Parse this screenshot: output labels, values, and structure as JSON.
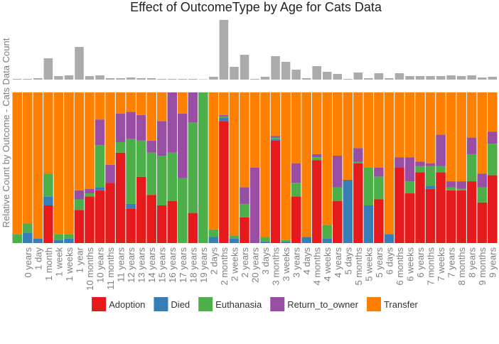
{
  "chart_data": [
    {
      "type": "bar",
      "color": "#ababab",
      "ylim": [
        0,
        86
      ],
      "values": [
        1,
        1,
        2,
        30,
        5,
        6,
        46,
        5,
        6,
        2,
        2,
        3,
        2,
        2,
        1,
        1,
        1,
        1,
        0.5,
        4,
        84,
        18,
        35,
        1,
        4,
        33,
        25,
        14,
        2,
        19,
        11,
        8,
        1,
        10,
        2,
        9,
        2,
        9,
        5,
        5,
        5,
        5,
        6,
        5,
        6,
        3,
        4
      ]
    },
    {
      "type": "stacked_bar",
      "title": "Effect of OutcomeType by Age for Cats Data",
      "y_label": "Relative Count by Outcome - Cats Data Count",
      "ylim": [
        0,
        1
      ],
      "legend": "bottom",
      "categories": [
        null,
        "0 years",
        "1 day",
        "1 month",
        "1 week",
        "1 weeks",
        "1 year",
        "10 months",
        "10 years",
        "11 months",
        "11 years",
        "12 years",
        "13 years",
        "14 years",
        "15 years",
        "16 years",
        "17 years",
        "18 years",
        "19 years",
        "2 days",
        "2 months",
        "2 weeks",
        "2 years",
        "20 years",
        "3 days",
        "3 months",
        "3 weeks",
        "3 years",
        "4 days",
        "4 months",
        "4 weeks",
        "4 years",
        "5 days",
        "5 months",
        "5 weeks",
        "5 years",
        "6 days",
        "6 months",
        "6 weeks",
        "6 years",
        "7 months",
        "7 weeks",
        "7 years",
        "8 months",
        "8 years",
        "9 months",
        "9 years"
      ],
      "series": [
        {
          "name": "Adoption",
          "color": "#e41a1c",
          "values": [
            0,
            0,
            0,
            0.25,
            0,
            0,
            0.22,
            0.31,
            0.35,
            0.4,
            0.6,
            0.23,
            0.44,
            0.32,
            0.25,
            0.28,
            0,
            0.2,
            0,
            0,
            0.81,
            0,
            0.17,
            0,
            0,
            0.68,
            0,
            0.31,
            0,
            0.55,
            0,
            0.28,
            0,
            0.53,
            0,
            0.29,
            0,
            0.5,
            0.33,
            0.47,
            0.36,
            0.47,
            0.35,
            0.35,
            0.41,
            0.27,
            0.45
          ]
        },
        {
          "name": "Died",
          "color": "#377eb8",
          "values": [
            0,
            0.07,
            0.03,
            0.06,
            0.02,
            0.03,
            0,
            0,
            0.02,
            0,
            0,
            0.03,
            0,
            0,
            0,
            0,
            0,
            0,
            0,
            0.04,
            0.02,
            0.03,
            0,
            0,
            0.01,
            0.01,
            0.01,
            0,
            0.04,
            0,
            0.03,
            0,
            0.42,
            0,
            0.25,
            0,
            0.06,
            0,
            0,
            0,
            0.02,
            0,
            0,
            0,
            0,
            0,
            0
          ]
        },
        {
          "name": "Euthanasia",
          "color": "#4daf4a",
          "values": [
            0.06,
            0.06,
            0,
            0.15,
            0.04,
            0.03,
            0.07,
            0.02,
            0.28,
            0,
            0.07,
            0.43,
            0.24,
            0.28,
            0.33,
            0.32,
            0.43,
            0.6,
            1,
            0.05,
            0.01,
            0.02,
            0.09,
            0,
            0.03,
            0.01,
            0.01,
            0.09,
            0,
            0.02,
            0.09,
            0.09,
            0,
            0.01,
            0.25,
            0.15,
            0,
            0,
            0.08,
            0.04,
            0.13,
            0.04,
            0.02,
            0.01,
            0.18,
            0.1,
            0.21
          ]
        },
        {
          "name": "Return_to_owner",
          "color": "#984ea3",
          "values": [
            0,
            0,
            0,
            0,
            0,
            0,
            0.06,
            0.03,
            0.17,
            0.12,
            0.19,
            0.18,
            0.17,
            0.08,
            0.23,
            0.4,
            0.43,
            0.2,
            0,
            0,
            0.01,
            0,
            0.11,
            0.5,
            0,
            0.01,
            0,
            0.13,
            0,
            0.02,
            0,
            0.21,
            0,
            0.09,
            0,
            0.06,
            0,
            0.07,
            0.16,
            0.03,
            0.02,
            0.21,
            0.04,
            0.05,
            0.11,
            0.09,
            0.08
          ]
        },
        {
          "name": "Transfer",
          "color": "#ff7f00",
          "values": [
            0.94,
            0.87,
            0.97,
            0.54,
            0.94,
            0.94,
            0.65,
            0.64,
            0.18,
            0.48,
            0.14,
            0.13,
            0.15,
            0.32,
            0.19,
            0,
            0.14,
            0,
            0,
            0.91,
            0.15,
            0.95,
            0.63,
            0.5,
            0.96,
            0.29,
            0.98,
            0.47,
            0.96,
            0.41,
            0.88,
            0.42,
            0.58,
            0.37,
            0.5,
            0.5,
            0.94,
            0.43,
            0.43,
            0.46,
            0.47,
            0.28,
            0.59,
            0.59,
            0.3,
            0.54,
            0.26
          ]
        }
      ]
    }
  ]
}
